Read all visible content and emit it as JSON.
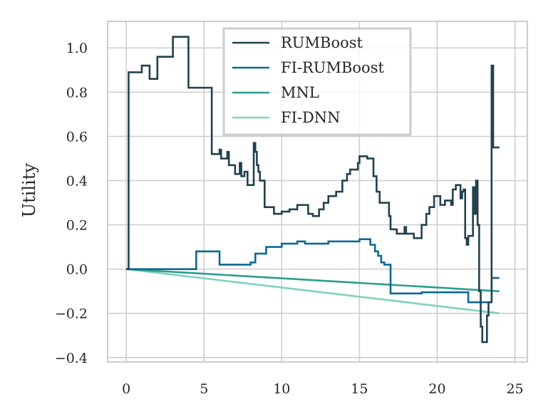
{
  "chart_data": {
    "type": "line",
    "title": "",
    "xlabel": "",
    "ylabel": "Utility",
    "xlim": [
      -1.2,
      25.8
    ],
    "ylim": [
      -0.42,
      1.12
    ],
    "xticks": [
      0,
      5,
      10,
      15,
      20,
      25
    ],
    "yticks": [
      -0.4,
      -0.2,
      0.0,
      0.2,
      0.4,
      0.6,
      0.8,
      1.0
    ],
    "ytick_labels": [
      "−0.4",
      "−0.2",
      "0.0",
      "0.2",
      "0.4",
      "0.6",
      "0.8",
      "1.0"
    ],
    "grid": true,
    "legend_position": "top-center",
    "series": [
      {
        "name": "RUMBoost",
        "color": "#23404f",
        "style": "step",
        "points": [
          [
            0,
            0
          ],
          [
            0.15,
            0
          ],
          [
            0.15,
            0.89
          ],
          [
            1.0,
            0.89
          ],
          [
            1.0,
            0.92
          ],
          [
            1.5,
            0.92
          ],
          [
            1.5,
            0.86
          ],
          [
            2.0,
            0.86
          ],
          [
            2.0,
            0.96
          ],
          [
            3.0,
            0.96
          ],
          [
            3.0,
            1.05
          ],
          [
            4.0,
            1.05
          ],
          [
            4.0,
            0.82
          ],
          [
            5.5,
            0.82
          ],
          [
            5.5,
            0.52
          ],
          [
            6.0,
            0.52
          ],
          [
            6.0,
            0.54
          ],
          [
            6.1,
            0.54
          ],
          [
            6.1,
            0.5
          ],
          [
            6.5,
            0.5
          ],
          [
            6.5,
            0.53
          ],
          [
            6.6,
            0.53
          ],
          [
            6.6,
            0.47
          ],
          [
            7.0,
            0.47
          ],
          [
            7.0,
            0.43
          ],
          [
            7.3,
            0.43
          ],
          [
            7.3,
            0.48
          ],
          [
            7.4,
            0.48
          ],
          [
            7.4,
            0.42
          ],
          [
            7.6,
            0.42
          ],
          [
            7.6,
            0.44
          ],
          [
            7.8,
            0.44
          ],
          [
            7.8,
            0.38
          ],
          [
            8.2,
            0.38
          ],
          [
            8.2,
            0.57
          ],
          [
            8.3,
            0.57
          ],
          [
            8.3,
            0.53
          ],
          [
            8.4,
            0.53
          ],
          [
            8.4,
            0.47
          ],
          [
            8.5,
            0.47
          ],
          [
            8.5,
            0.44
          ],
          [
            8.6,
            0.44
          ],
          [
            8.6,
            0.4
          ],
          [
            8.9,
            0.4
          ],
          [
            8.9,
            0.28
          ],
          [
            9.5,
            0.28
          ],
          [
            9.5,
            0.25
          ],
          [
            10.0,
            0.25
          ],
          [
            10.0,
            0.26
          ],
          [
            10.5,
            0.26
          ],
          [
            10.5,
            0.27
          ],
          [
            11.0,
            0.27
          ],
          [
            11.0,
            0.29
          ],
          [
            11.7,
            0.29
          ],
          [
            11.7,
            0.25
          ],
          [
            12.0,
            0.25
          ],
          [
            12.0,
            0.24
          ],
          [
            12.4,
            0.24
          ],
          [
            12.4,
            0.27
          ],
          [
            12.7,
            0.27
          ],
          [
            12.7,
            0.3
          ],
          [
            13.0,
            0.3
          ],
          [
            13.0,
            0.33
          ],
          [
            13.5,
            0.33
          ],
          [
            13.5,
            0.35
          ],
          [
            13.9,
            0.35
          ],
          [
            13.9,
            0.4
          ],
          [
            14.2,
            0.4
          ],
          [
            14.2,
            0.43
          ],
          [
            14.4,
            0.43
          ],
          [
            14.4,
            0.45
          ],
          [
            14.9,
            0.45
          ],
          [
            14.9,
            0.48
          ],
          [
            15.0,
            0.48
          ],
          [
            15.0,
            0.51
          ],
          [
            15.5,
            0.51
          ],
          [
            15.5,
            0.5
          ],
          [
            15.9,
            0.5
          ],
          [
            15.9,
            0.42
          ],
          [
            16.1,
            0.42
          ],
          [
            16.1,
            0.35
          ],
          [
            16.3,
            0.35
          ],
          [
            16.3,
            0.3
          ],
          [
            16.9,
            0.3
          ],
          [
            16.9,
            0.24
          ],
          [
            17.0,
            0.24
          ],
          [
            17.0,
            0.18
          ],
          [
            17.4,
            0.18
          ],
          [
            17.4,
            0.16
          ],
          [
            17.9,
            0.16
          ],
          [
            17.9,
            0.19
          ],
          [
            18.0,
            0.19
          ],
          [
            18.0,
            0.16
          ],
          [
            18.5,
            0.16
          ],
          [
            18.5,
            0.14
          ],
          [
            19.0,
            0.14
          ],
          [
            19.0,
            0.2
          ],
          [
            19.3,
            0.2
          ],
          [
            19.3,
            0.25
          ],
          [
            19.5,
            0.25
          ],
          [
            19.5,
            0.28
          ],
          [
            19.8,
            0.28
          ],
          [
            19.8,
            0.33
          ],
          [
            20.2,
            0.33
          ],
          [
            20.2,
            0.29
          ],
          [
            20.5,
            0.29
          ],
          [
            20.5,
            0.31
          ],
          [
            20.9,
            0.31
          ],
          [
            20.9,
            0.29
          ],
          [
            21.0,
            0.29
          ],
          [
            21.0,
            0.36
          ],
          [
            21.2,
            0.36
          ],
          [
            21.2,
            0.38
          ],
          [
            21.5,
            0.38
          ],
          [
            21.5,
            0.32
          ],
          [
            21.6,
            0.32
          ],
          [
            21.6,
            0.35
          ],
          [
            21.7,
            0.35
          ],
          [
            21.7,
            0.36
          ],
          [
            21.8,
            0.36
          ],
          [
            21.8,
            0.14
          ],
          [
            21.9,
            0.14
          ],
          [
            21.9,
            0.11
          ],
          [
            22.0,
            0.11
          ],
          [
            22.0,
            0.15
          ],
          [
            22.3,
            0.15
          ],
          [
            22.3,
            0.37
          ],
          [
            22.4,
            0.37
          ],
          [
            22.4,
            0.25
          ],
          [
            22.5,
            0.25
          ],
          [
            22.5,
            0.4
          ],
          [
            22.6,
            0.4
          ],
          [
            22.6,
            0.2
          ],
          [
            22.7,
            0.2
          ],
          [
            22.7,
            -0.1
          ],
          [
            22.8,
            -0.1
          ],
          [
            22.8,
            -0.26
          ],
          [
            22.9,
            -0.26
          ],
          [
            22.9,
            -0.33
          ],
          [
            23.2,
            -0.33
          ],
          [
            23.2,
            -0.21
          ],
          [
            23.3,
            -0.21
          ],
          [
            23.3,
            -0.15
          ],
          [
            23.5,
            -0.15
          ],
          [
            23.5,
            0.92
          ],
          [
            23.6,
            0.92
          ],
          [
            23.6,
            0.55
          ],
          [
            24.0,
            0.55
          ]
        ]
      },
      {
        "name": "FI-RUMBoost",
        "color": "#0d6994",
        "style": "step",
        "points": [
          [
            0,
            0
          ],
          [
            4.5,
            0
          ],
          [
            4.5,
            0.08
          ],
          [
            6.0,
            0.08
          ],
          [
            6.0,
            0.02
          ],
          [
            8.0,
            0.02
          ],
          [
            8.0,
            0.03
          ],
          [
            8.3,
            0.03
          ],
          [
            8.3,
            0.07
          ],
          [
            9.0,
            0.07
          ],
          [
            9.0,
            0.1
          ],
          [
            10.0,
            0.1
          ],
          [
            10.0,
            0.115
          ],
          [
            11.0,
            0.115
          ],
          [
            11.0,
            0.125
          ],
          [
            11.5,
            0.125
          ],
          [
            11.5,
            0.115
          ],
          [
            13.0,
            0.115
          ],
          [
            13.0,
            0.125
          ],
          [
            15.0,
            0.125
          ],
          [
            15.0,
            0.135
          ],
          [
            15.7,
            0.135
          ],
          [
            15.7,
            0.11
          ],
          [
            16.0,
            0.11
          ],
          [
            16.0,
            0.08
          ],
          [
            16.2,
            0.08
          ],
          [
            16.2,
            0.06
          ],
          [
            16.4,
            0.06
          ],
          [
            16.4,
            0.03
          ],
          [
            16.6,
            0.03
          ],
          [
            16.6,
            0.02
          ],
          [
            17.0,
            0.02
          ],
          [
            17.0,
            -0.11
          ],
          [
            19.0,
            -0.11
          ],
          [
            19.0,
            -0.105
          ],
          [
            22.0,
            -0.105
          ],
          [
            22.0,
            -0.15
          ],
          [
            23.5,
            -0.15
          ],
          [
            23.5,
            -0.04
          ],
          [
            24.0,
            -0.04
          ]
        ]
      },
      {
        "name": "MNL",
        "color": "#2a9d8f",
        "style": "linear",
        "points": [
          [
            0,
            0
          ],
          [
            24,
            -0.1
          ]
        ]
      },
      {
        "name": "FI-DNN",
        "color": "#7fd1bf",
        "style": "linear",
        "points": [
          [
            0,
            0
          ],
          [
            24,
            -0.2
          ]
        ]
      }
    ]
  }
}
